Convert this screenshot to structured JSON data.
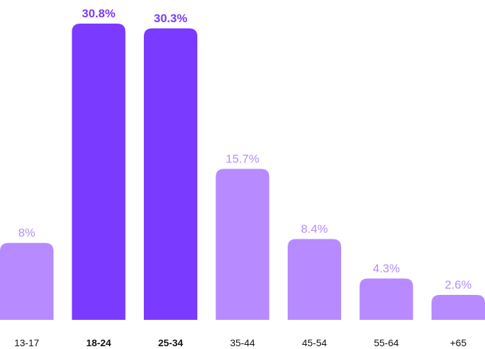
{
  "chart_data": {
    "type": "bar",
    "categories": [
      "13-17",
      "18-24",
      "25-34",
      "35-44",
      "45-54",
      "55-64",
      "+65"
    ],
    "values": [
      8,
      30.8,
      30.3,
      15.7,
      8.4,
      4.3,
      2.6
    ],
    "value_labels": [
      "8%",
      "30.8%",
      "30.3%",
      "15.7%",
      "8.4%",
      "4.3%",
      "2.6%"
    ],
    "highlighted": [
      "18-24",
      "25-34"
    ],
    "unit": "%",
    "title": "",
    "xlabel": "",
    "ylabel": "",
    "ylim": [
      0,
      30.8
    ],
    "grid": false,
    "legend": "none",
    "colors": {
      "bar": "#b78bff",
      "bar_highlight": "#7b3aff",
      "label": "#b78bff",
      "label_highlight": "#7b3aff",
      "axis_text": "#111111"
    }
  }
}
